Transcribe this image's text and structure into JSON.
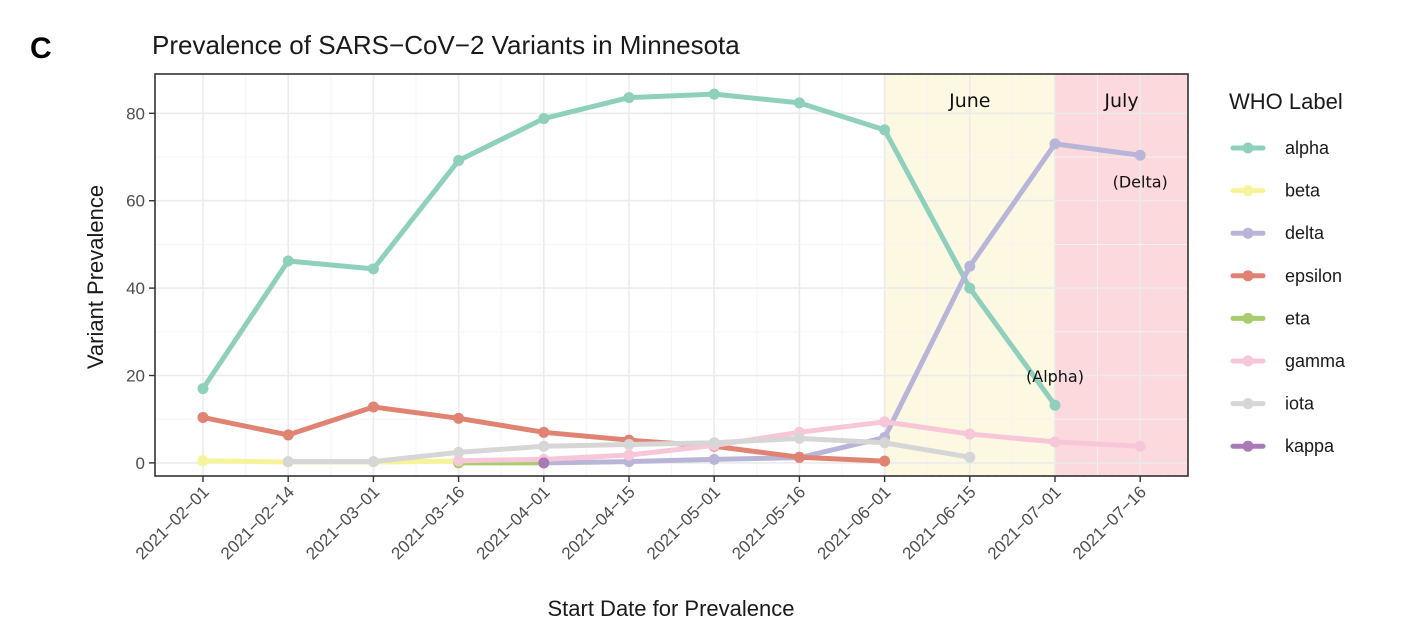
{
  "panel_label": "C",
  "chart_data": {
    "type": "line",
    "title": "Prevalence of SARS−CoV−2 Variants in Minnesota",
    "xlabel": "Start Date for Prevalence",
    "ylabel": "Variant Prevalence",
    "categories": [
      "2021−02−01",
      "2021−02−14",
      "2021−03−01",
      "2021−03−16",
      "2021−04−01",
      "2021−04−15",
      "2021−05−01",
      "2021−05−16",
      "2021−06−01",
      "2021−06−15",
      "2021−07−01",
      "2021−07−16"
    ],
    "ylim": [
      -3,
      89
    ],
    "yticks": [
      0,
      20,
      40,
      60,
      80
    ],
    "ytick_labels": [
      "0",
      "20",
      "40",
      "60",
      "80"
    ],
    "grid": true,
    "legend": {
      "title": "WHO Label",
      "placement": "right"
    },
    "series": [
      {
        "name": "alpha",
        "color": "#8fd0bd",
        "values": [
          17,
          46.2,
          44.4,
          69.2,
          78.8,
          83.6,
          84.4,
          82.4,
          76.2,
          40,
          13.2,
          null
        ]
      },
      {
        "name": "beta",
        "color": "#f7f39a",
        "values": [
          0.5,
          0.2,
          0.2,
          0.4,
          null,
          null,
          null,
          null,
          null,
          null,
          null,
          null
        ]
      },
      {
        "name": "delta",
        "color": "#b9b5d9",
        "values": [
          null,
          null,
          null,
          null,
          0,
          0.3,
          0.8,
          1.2,
          5.8,
          45,
          73,
          70.4
        ]
      },
      {
        "name": "epsilon",
        "color": "#e08373",
        "values": [
          10.4,
          6.4,
          12.8,
          10.2,
          7,
          5.2,
          3.8,
          1.3,
          0.4,
          null,
          null,
          null
        ]
      },
      {
        "name": "eta",
        "color": "#a8cc6e",
        "values": [
          null,
          null,
          null,
          0,
          0,
          null,
          null,
          null,
          null,
          null,
          null,
          null
        ]
      },
      {
        "name": "gamma",
        "color": "#f7c7d9",
        "values": [
          null,
          null,
          null,
          0.5,
          0.8,
          1.8,
          4,
          7,
          9.4,
          6.6,
          4.8,
          3.8
        ]
      },
      {
        "name": "iota",
        "color": "#d6d6d6",
        "values": [
          null,
          0.3,
          0.3,
          2.4,
          3.8,
          4.2,
          4.6,
          5.6,
          4.6,
          1.3,
          null,
          null
        ]
      },
      {
        "name": "kappa",
        "color": "#a97ab8",
        "values": [
          null,
          null,
          null,
          null,
          0,
          null,
          null,
          null,
          null,
          null,
          null,
          null
        ]
      }
    ],
    "highlight_bands": [
      {
        "label": "June",
        "from": "2021−06−01",
        "to": "2021−07−01",
        "color": "#fdf8e2"
      },
      {
        "label": "July",
        "from": "2021−07−01",
        "to": "end",
        "color": "#fbd9dd"
      }
    ],
    "annotations": [
      {
        "text": "(Delta)",
        "near": "2021−07−16",
        "value": 63
      },
      {
        "text": "(Alpha)",
        "near": "2021−07−01",
        "value": 18.5
      }
    ]
  }
}
